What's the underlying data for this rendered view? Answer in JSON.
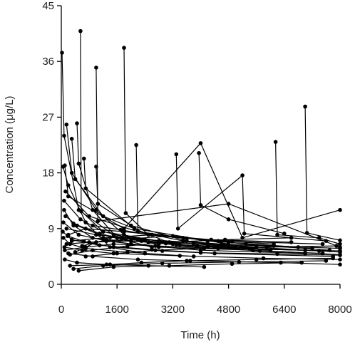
{
  "chart_data": {
    "type": "line",
    "title": "",
    "xlabel": "Time (h)",
    "ylabel": "Concentration (μg/L)",
    "xlim": [
      0,
      8000
    ],
    "ylim": [
      0,
      45
    ],
    "xticks": [
      0,
      1600,
      3200,
      4800,
      6400,
      8000
    ],
    "yticks": [
      0,
      9,
      18,
      27,
      36,
      45
    ],
    "xtick_labels": [
      "0",
      "1600",
      "3200",
      "4800",
      "6400",
      "8000"
    ],
    "ytick_labels": [
      "0",
      "9",
      "18",
      "27",
      "36",
      "45"
    ],
    "grid": false,
    "legend": "none",
    "line_color": "#000000",
    "series": [
      {
        "x": [
          20,
          80,
          500,
          1500,
          3000,
          8000
        ],
        "y": [
          37.4,
          24,
          12,
          8,
          6.8,
          5.2
        ]
      },
      {
        "x": [
          100,
          200,
          1800,
          4000,
          5200,
          8000
        ],
        "y": [
          19.2,
          14.2,
          9,
          22.8,
          7.5,
          12
        ]
      },
      {
        "x": [
          550,
          570,
          1200,
          2800,
          5000
        ],
        "y": [
          40.9,
          11.8,
          8.5,
          7,
          6
        ]
      },
      {
        "x": [
          1000,
          1050,
          4800,
          8000
        ],
        "y": [
          35,
          10.2,
          13,
          6
        ]
      },
      {
        "x": [
          1800,
          1850,
          2500,
          4500,
          7500
        ],
        "y": [
          38.2,
          11.5,
          8,
          7,
          6.5
        ]
      },
      {
        "x": [
          3300,
          3350,
          5200,
          5250,
          7600
        ],
        "y": [
          21,
          9,
          17.6,
          8.2,
          7
        ]
      },
      {
        "x": [
          3950,
          4000,
          4800,
          6400
        ],
        "y": [
          21.2,
          12.8,
          10.5,
          8.2
        ]
      },
      {
        "x": [
          6150,
          6200,
          7400,
          8000
        ],
        "y": [
          23,
          8,
          7.5,
          6.5
        ]
      },
      {
        "x": [
          7000,
          7050,
          8000
        ],
        "y": [
          28.7,
          8.3,
          7.1
        ]
      },
      {
        "x": [
          2150,
          2200,
          3500,
          5600
        ],
        "y": [
          22.5,
          8.5,
          7,
          6
        ]
      },
      {
        "x": [
          50,
          200,
          700,
          1400,
          2400
        ],
        "y": [
          19,
          16,
          10,
          6,
          5
        ]
      },
      {
        "x": [
          150,
          300,
          1000,
          1800,
          2800
        ],
        "y": [
          25.8,
          18,
          12,
          8,
          6.5
        ]
      },
      {
        "x": [
          450,
          500,
          900,
          1600,
          2600
        ],
        "y": [
          26,
          19.5,
          12,
          7.5,
          6
        ]
      },
      {
        "x": [
          300,
          400,
          1200,
          3200
        ],
        "y": [
          23.5,
          17,
          11,
          6.5
        ]
      },
      {
        "x": [
          650,
          700,
          2100,
          4800
        ],
        "y": [
          20.3,
          15.5,
          9,
          6.5
        ]
      },
      {
        "x": [
          1000,
          1050,
          2000,
          3600,
          6000
        ],
        "y": [
          19,
          13,
          9.5,
          7,
          5.5
        ]
      },
      {
        "x": [
          80,
          350,
          900,
          2000,
          4000,
          7000
        ],
        "y": [
          12,
          9.5,
          7.5,
          6.5,
          5.5,
          5
        ]
      },
      {
        "x": [
          60,
          500,
          1300,
          2800,
          5500,
          8000
        ],
        "y": [
          10,
          8,
          7,
          6,
          5.5,
          4.8
        ]
      },
      {
        "x": [
          120,
          800,
          2200,
          4200,
          6800
        ],
        "y": [
          15,
          11,
          8.5,
          7,
          6
        ]
      },
      {
        "x": [
          40,
          300,
          1100,
          2600,
          4400,
          7800
        ],
        "y": [
          8.5,
          7.2,
          6.3,
          5.6,
          5,
          4.5
        ]
      },
      {
        "x": [
          90,
          600,
          1500,
          3400,
          5800,
          8000
        ],
        "y": [
          6,
          5.5,
          5,
          4.6,
          4.2,
          4
        ]
      },
      {
        "x": [
          60,
          250,
          700,
          1900,
          3800
        ],
        "y": [
          7.5,
          6.5,
          5.8,
          5.2,
          4.5
        ]
      },
      {
        "x": [
          150,
          1000,
          2400,
          4600,
          7200
        ],
        "y": [
          9,
          8,
          7.2,
          6.5,
          5.8
        ]
      },
      {
        "x": [
          200,
          900,
          2200,
          3700,
          6300,
          8000
        ],
        "y": [
          5,
          4.5,
          4,
          3.8,
          3.5,
          3.2
        ]
      },
      {
        "x": [
          100,
          450,
          1300,
          2500,
          4100
        ],
        "y": [
          4,
          3.5,
          3.2,
          3,
          2.8
        ]
      },
      {
        "x": [
          250,
          1400,
          2300,
          3600,
          5600,
          7800
        ],
        "y": [
          3,
          3.2,
          3.5,
          3.8,
          4,
          4.2
        ]
      },
      {
        "x": [
          350,
          1200,
          2900,
          5100,
          7600
        ],
        "y": [
          2.5,
          3,
          3.4,
          3.6,
          3.8
        ]
      },
      {
        "x": [
          500,
          1500,
          3100,
          4900,
          6900
        ],
        "y": [
          2.2,
          2.8,
          3,
          3.3,
          3.5
        ]
      },
      {
        "x": [
          700,
          1600,
          2700,
          4100,
          5900,
          7900
        ],
        "y": [
          4.5,
          5,
          5.5,
          5.8,
          6,
          6.2
        ]
      },
      {
        "x": [
          150,
          800,
          2000,
          3800,
          6100,
          8000
        ],
        "y": [
          6.5,
          6.8,
          7,
          6.6,
          6.2,
          5.8
        ]
      },
      {
        "x": [
          120,
          450,
          1100,
          2300,
          3900,
          6000
        ],
        "y": [
          11,
          9.5,
          8,
          7,
          6.2,
          5.5
        ]
      },
      {
        "x": [
          200,
          700,
          1800,
          3500,
          5300,
          7700
        ],
        "y": [
          8,
          9,
          8.5,
          7.5,
          6.5,
          5.5
        ]
      },
      {
        "x": [
          300,
          1200,
          2600,
          4300,
          6600
        ],
        "y": [
          7,
          7.5,
          8,
          7.2,
          6.8
        ]
      },
      {
        "x": [
          100,
          700,
          1500,
          2700,
          4500,
          8000
        ],
        "y": [
          5.5,
          6,
          6.5,
          6.2,
          5.8,
          5.4
        ]
      },
      {
        "x": [
          400,
          1000,
          2100,
          3200,
          4800
        ],
        "y": [
          5.2,
          6.8,
          7.4,
          7.8,
          6.8
        ]
      },
      {
        "x": [
          600,
          1300,
          2500,
          3900,
          5700,
          7500
        ],
        "y": [
          6.2,
          7.2,
          6.8,
          6,
          5.4,
          5
        ]
      },
      {
        "x": [
          250,
          900,
          1900,
          3100,
          4700,
          6600
        ],
        "y": [
          4.8,
          5.5,
          6.2,
          6.8,
          7.2,
          7.5
        ]
      },
      {
        "x": [
          80,
          550,
          1200,
          2200,
          3400,
          5000
        ],
        "y": [
          13.5,
          10.5,
          8.5,
          7.2,
          6.4,
          6
        ]
      },
      {
        "x": [
          350,
          1100,
          2000,
          3300,
          4400,
          5500,
          7000
        ],
        "y": [
          9.8,
          8.2,
          7,
          6.4,
          6,
          5.7,
          5.5
        ]
      },
      {
        "x": [
          180,
          650,
          1500,
          2900,
          4000,
          6200,
          8000
        ],
        "y": [
          7.8,
          6.9,
          6,
          5.4,
          5.1,
          4.9,
          4.7
        ]
      },
      {
        "x": [
          900,
          1700,
          2500,
          3600,
          4900,
          6100
        ],
        "y": [
          9.5,
          8.8,
          8,
          7.4,
          6.9,
          6.5
        ]
      },
      {
        "x": [
          1400,
          2200,
          3000,
          4200,
          5400,
          7400
        ],
        "y": [
          7.6,
          7.2,
          6.6,
          6.1,
          5.8,
          5.4
        ]
      }
    ]
  }
}
